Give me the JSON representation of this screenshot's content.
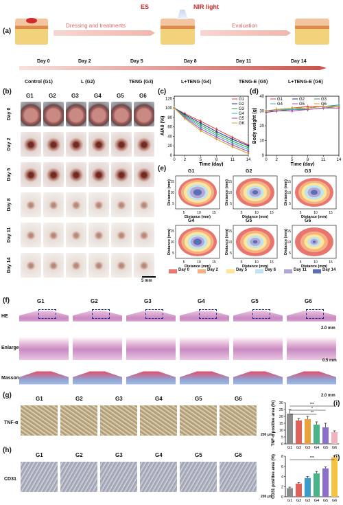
{
  "panel_labels": [
    "(a)",
    "(b)",
    "(c)",
    "(d)",
    "(e)",
    "(f)",
    "(g)",
    "(h)",
    "(i)",
    "(j)"
  ],
  "panel_a": {
    "es": "ES",
    "nir": "NIR light",
    "dressing": "Dressing and treatments",
    "evaluation": "Evaluation",
    "days": [
      "Day 0",
      "Day 2",
      "Day 5",
      "Day 8",
      "Day 11",
      "Day 14"
    ],
    "groups": [
      "Control (G1)",
      "L (G2)",
      "TENG (G3)",
      "L+TENG (G4)",
      "TENG-E (G5)",
      "L+TENG-E (G6)"
    ]
  },
  "panel_b": {
    "groups": [
      "G1",
      "G2",
      "G3",
      "G4",
      "G5",
      "G6"
    ],
    "days": [
      "Day 0",
      "Day 2",
      "Day 5",
      "Day 8",
      "Day 11",
      "Day 14"
    ],
    "scale": "5 mm"
  },
  "panel_e": {
    "groups": [
      "G1",
      "G2",
      "G3",
      "G4",
      "G5",
      "G6"
    ],
    "ylabel": "Distance (mm)",
    "xlabel": "Distance (mm)",
    "legend": [
      "Day 0",
      "Day 2",
      "Day 5",
      "Day 8",
      "Day 11",
      "Day 14"
    ],
    "legend_colors": [
      "#e8766f",
      "#f4b183",
      "#ffe699",
      "#bfe3ef",
      "#b4a7d6",
      "#5b6fb8"
    ]
  },
  "panel_f": {
    "rows": [
      "HE",
      "Enlarge",
      "Masson"
    ],
    "groups": [
      "G1",
      "G2",
      "G3",
      "G4",
      "G5",
      "G6"
    ],
    "scale1": "2.0 mm",
    "scale2": "0.5 mm",
    "scale3": "2.0 mm"
  },
  "panel_g": {
    "row": "TNF-α",
    "groups": [
      "G1",
      "G2",
      "G3",
      "G4",
      "G5",
      "G6"
    ],
    "scale": "200 μm"
  },
  "panel_h": {
    "row": "CD31",
    "groups": [
      "G1",
      "G2",
      "G3",
      "G4",
      "G5",
      "G6"
    ],
    "scale": "200 μm"
  },
  "chart_data": [
    {
      "type": "line",
      "panel": "c",
      "xlabel": "Time (day)",
      "ylabel": "A/A0 (%)",
      "x": [
        0,
        2,
        5,
        8,
        11,
        14
      ],
      "xlim": [
        0,
        14
      ],
      "ylim": [
        0,
        125
      ],
      "xticks": [
        0,
        2,
        5,
        8,
        11,
        14
      ],
      "yticks": [
        0,
        20,
        40,
        60,
        80,
        100,
        120
      ],
      "series": [
        {
          "name": "G1",
          "color": "#e03a3a",
          "values": [
            100,
            88,
            72,
            55,
            38,
            22
          ]
        },
        {
          "name": "G2",
          "color": "#1a2a8a",
          "values": [
            100,
            86,
            68,
            50,
            34,
            20
          ]
        },
        {
          "name": "G3",
          "color": "#2e9e3e",
          "values": [
            100,
            84,
            64,
            46,
            30,
            16
          ]
        },
        {
          "name": "G4",
          "color": "#2bb0c8",
          "values": [
            100,
            82,
            60,
            42,
            26,
            12
          ]
        },
        {
          "name": "G5",
          "color": "#b23fb8",
          "values": [
            100,
            80,
            56,
            38,
            22,
            8
          ]
        },
        {
          "name": "G6",
          "color": "#c9a12a",
          "values": [
            100,
            78,
            52,
            34,
            18,
            4
          ]
        }
      ]
    },
    {
      "type": "line",
      "panel": "d",
      "xlabel": "Time (day)",
      "ylabel": "Body weight (g)",
      "x": [
        0,
        2,
        5,
        8,
        11,
        14
      ],
      "xlim": [
        0,
        14
      ],
      "ylim": [
        0,
        40
      ],
      "xticks": [
        0,
        2,
        5,
        8,
        11,
        14
      ],
      "yticks": [
        0,
        10,
        20,
        30,
        40
      ],
      "series": [
        {
          "name": "G1",
          "color": "#e03a3a",
          "values": [
            30,
            31,
            32,
            33,
            33,
            34
          ]
        },
        {
          "name": "G2",
          "color": "#1a2a8a",
          "values": [
            30,
            30,
            31,
            32,
            33,
            33
          ]
        },
        {
          "name": "G3",
          "color": "#2e9e3e",
          "values": [
            29,
            30,
            31,
            31,
            32,
            33
          ]
        },
        {
          "name": "G4",
          "color": "#2bb0c8",
          "values": [
            30,
            31,
            31,
            32,
            33,
            34
          ]
        },
        {
          "name": "G5",
          "color": "#b23fb8",
          "values": [
            29,
            30,
            30,
            31,
            32,
            32
          ]
        },
        {
          "name": "G6",
          "color": "#c9a12a",
          "values": [
            30,
            31,
            32,
            32,
            33,
            33
          ]
        }
      ]
    },
    {
      "type": "bar",
      "panel": "i",
      "ylabel": "TNF-α positive area (%)",
      "categories": [
        "G1",
        "G2",
        "G3",
        "G4",
        "G5",
        "G6"
      ],
      "values": [
        22,
        17,
        18,
        14,
        12,
        8.5
      ],
      "errors": [
        3,
        1.5,
        2,
        2,
        3,
        1
      ],
      "colors": [
        "#8c8c8c",
        "#e0605a",
        "#e9a23b",
        "#4bb38a",
        "#8b6fc9",
        "#f0b3c0"
      ],
      "ylim": [
        0,
        30
      ],
      "yticks": [
        0,
        5,
        10,
        15,
        20,
        25,
        30
      ],
      "significance": [
        "***",
        "*",
        "**"
      ]
    },
    {
      "type": "bar",
      "panel": "j",
      "ylabel": "CD31 positive area (%)",
      "categories": [
        "G1",
        "G2",
        "G3",
        "G4",
        "G5",
        "G6"
      ],
      "values": [
        1.7,
        2.6,
        3.7,
        4.6,
        5.6,
        7.8
      ],
      "errors": [
        0.2,
        0.2,
        0.3,
        0.4,
        0.3,
        0.3
      ],
      "colors": [
        "#8c8c8c",
        "#e0605a",
        "#3b9cc9",
        "#4bb38a",
        "#8b6fc9",
        "#f5c242"
      ],
      "ylim": [
        0,
        8
      ],
      "yticks": [
        0,
        2,
        4,
        6,
        8
      ],
      "significance": [
        "***"
      ]
    }
  ]
}
